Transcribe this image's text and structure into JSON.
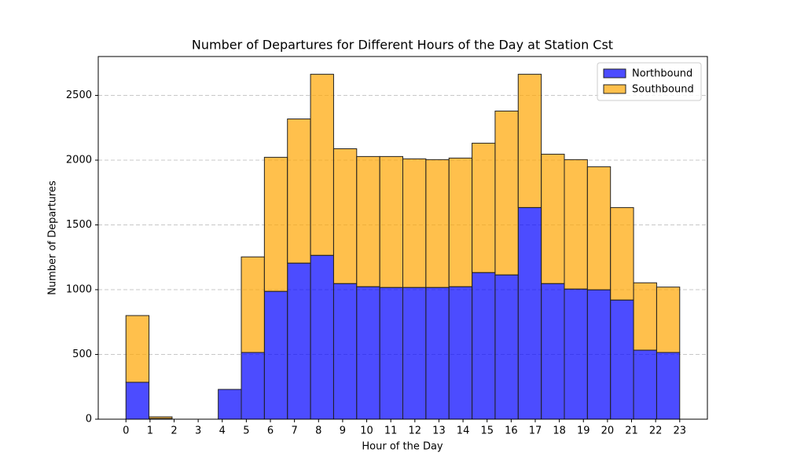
{
  "chart_data": {
    "type": "histogram",
    "title": "Number of Departures for Different Hours of the Day at Station Cst",
    "xlabel": "Hour of the Day",
    "ylabel": "Number of Departures",
    "bins": [
      0,
      0.9583,
      1.9167,
      2.875,
      3.8333,
      4.7917,
      5.75,
      6.7083,
      7.6667,
      8.625,
      9.5833,
      10.5417,
      11.5,
      12.4583,
      13.4167,
      14.375,
      15.3333,
      16.2917,
      17.25,
      18.2083,
      19.1667,
      20.125,
      21.0833,
      22.0417,
      23
    ],
    "stacked": true,
    "series": [
      {
        "name": "Northbound",
        "color": "#0000ff",
        "values": [
          285,
          5,
          0,
          0,
          230,
          515,
          987,
          1205,
          1265,
          1047,
          1023,
          1017,
          1017,
          1017,
          1023,
          1132,
          1114,
          1634,
          1047,
          1005,
          999,
          920,
          533,
          515
        ]
      },
      {
        "name": "Southbound",
        "color": "#ffa500",
        "values": [
          515,
          13,
          0,
          0,
          0,
          738,
          1035,
          1113,
          1398,
          1041,
          1005,
          1011,
          993,
          987,
          993,
          999,
          1265,
          1029,
          999,
          999,
          950,
          714,
          520,
          505
        ]
      }
    ],
    "alpha": 0.7,
    "xlim": [
      -1.15,
      24.15
    ],
    "ylim": [
      0,
      2800
    ],
    "xticks": [
      0,
      1,
      2,
      3,
      4,
      5,
      6,
      7,
      8,
      9,
      10,
      11,
      12,
      13,
      14,
      15,
      16,
      17,
      18,
      19,
      20,
      21,
      22,
      23
    ],
    "yticks": [
      0,
      500,
      1000,
      1500,
      2000,
      2500
    ],
    "grid": "y",
    "legend": "upper right"
  }
}
